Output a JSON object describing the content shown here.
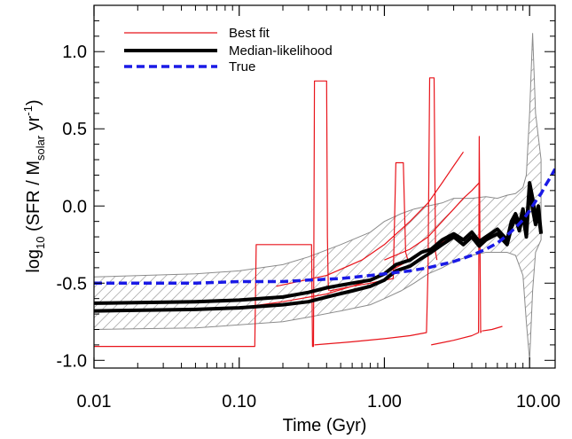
{
  "chart_data": {
    "type": "line",
    "xlabel": "Time (Gyr)",
    "ylabel": {
      "prefix": "log",
      "prefix_sub": "10",
      "main": " (SFR / M",
      "main_sub": "solar",
      "main_tail": " yr",
      "main_sup": "-1",
      "close": ")"
    },
    "x_scale": "log",
    "xlim": [
      0.01,
      15
    ],
    "ylim": [
      -1.05,
      1.3
    ],
    "x_ticks": [
      {
        "value": 0.01,
        "label": "0.01"
      },
      {
        "value": 0.1,
        "label": "0.10"
      },
      {
        "value": 1,
        "label": "1.00"
      },
      {
        "value": 10,
        "label": "10.00"
      }
    ],
    "y_ticks": [
      {
        "value": 1.0,
        "label": "1.0"
      },
      {
        "value": 0.5,
        "label": "0.5"
      },
      {
        "value": 0.0,
        "label": "0.0"
      },
      {
        "value": -0.5,
        "label": "-0.5"
      },
      {
        "value": -1.0,
        "label": "-1.0"
      }
    ],
    "legend": {
      "placement": "top-left",
      "entries": [
        {
          "name": "Best fit",
          "color": "#e8141b",
          "style": "thin"
        },
        {
          "name": "Median-likelihood",
          "color": "#000000",
          "style": "thick"
        },
        {
          "name": "True",
          "color": "#1a1ae6",
          "style": "dashed"
        }
      ]
    },
    "band": {
      "color": "#8c8c8c",
      "fill": "hatched",
      "x": [
        0.01,
        0.05,
        0.1,
        0.2,
        0.3,
        0.5,
        0.8,
        1.0,
        1.3,
        1.6,
        2.0,
        2.5,
        3.0,
        4.0,
        5.0,
        6.0,
        7.0,
        8.0,
        9.0,
        9.5,
        10.0,
        10.5,
        11.0,
        12.0
      ],
      "upper": [
        -0.46,
        -0.44,
        -0.42,
        -0.38,
        -0.33,
        -0.25,
        -0.17,
        -0.1,
        -0.05,
        -0.02,
        0.0,
        0.02,
        0.05,
        0.05,
        0.06,
        0.05,
        0.07,
        0.08,
        0.12,
        0.2,
        0.6,
        1.12,
        0.6,
        0.3
      ],
      "lower": [
        -0.8,
        -0.79,
        -0.77,
        -0.75,
        -0.72,
        -0.68,
        -0.64,
        -0.6,
        -0.55,
        -0.5,
        -0.44,
        -0.4,
        -0.36,
        -0.32,
        -0.3,
        -0.3,
        -0.3,
        -0.32,
        -0.45,
        -0.75,
        -1.0,
        -0.55,
        -0.3,
        -0.22
      ]
    },
    "series": [
      {
        "name": "Best fit",
        "color": "#e8141b",
        "segments": [
          {
            "x": [
              0.01,
              0.128,
              0.131,
              0.315,
              0.32,
              0.325,
              0.33,
              0.4,
              0.405,
              0.41,
              0.415
            ],
            "y": [
              -0.91,
              -0.91,
              -0.25,
              -0.25,
              -0.91,
              -0.91,
              0.81,
              0.81,
              -0.2,
              -0.5,
              -0.55
            ]
          },
          {
            "x": [
              0.33,
              0.6,
              1.0,
              1.5,
              1.95,
              2.0,
              2.05,
              2.2,
              2.25,
              2.3
            ],
            "y": [
              -0.9,
              -0.88,
              -0.86,
              -0.84,
              -0.82,
              -0.4,
              0.83,
              0.83,
              -0.3,
              -0.35
            ]
          },
          {
            "x": [
              2.1,
              3.0,
              4.0,
              4.45,
              4.5,
              4.55,
              4.6,
              4.65
            ],
            "y": [
              -0.9,
              -0.87,
              -0.84,
              -0.82,
              0.45,
              -0.2,
              -0.82,
              -0.81
            ]
          },
          {
            "x": [
              4.7,
              5.5,
              6.5
            ],
            "y": [
              -0.81,
              -0.8,
              -0.78
            ]
          },
          {
            "x": [
              0.42,
              0.6,
              0.8,
              1.0,
              1.15,
              1.2,
              1.25,
              1.35,
              1.4,
              1.45
            ],
            "y": [
              -0.55,
              -0.52,
              -0.5,
              -0.48,
              -0.47,
              0.28,
              0.28,
              0.28,
              -0.3,
              -0.35
            ]
          },
          {
            "x": [
              0.18,
              0.4,
              0.7,
              1.0,
              1.5,
              2.0,
              2.5,
              3.0,
              3.5
            ],
            "y": [
              -0.52,
              -0.45,
              -0.35,
              -0.25,
              -0.1,
              0.02,
              0.15,
              0.26,
              0.35
            ]
          },
          {
            "x": [
              1.0,
              1.5,
              2.0,
              2.5,
              3.0,
              3.5,
              4.0,
              4.5
            ],
            "y": [
              -0.35,
              -0.28,
              -0.2,
              -0.1,
              -0.02,
              0.05,
              0.1,
              0.15
            ]
          },
          {
            "x": [
              0.1,
              0.2,
              0.4,
              0.7,
              1.0,
              1.5,
              2.0,
              3.0
            ],
            "y": [
              -0.66,
              -0.62,
              -0.57,
              -0.5,
              -0.44,
              -0.35,
              -0.28,
              -0.2
            ]
          }
        ]
      },
      {
        "name": "Median-likelihood",
        "color": "#000000",
        "segments": [
          {
            "x": [
              0.01,
              0.05,
              0.1,
              0.2,
              0.3,
              0.4,
              0.6,
              0.8,
              1.0,
              1.2,
              1.5,
              1.8,
              2.1,
              2.5,
              3.0,
              3.5,
              4.0,
              4.5,
              5.0,
              6.0,
              7.0,
              7.5,
              8.0,
              8.5,
              9.0,
              9.5,
              10.0,
              10.5,
              11.0,
              11.5,
              12.0
            ],
            "y": [
              -0.63,
              -0.62,
              -0.61,
              -0.59,
              -0.56,
              -0.53,
              -0.5,
              -0.48,
              -0.44,
              -0.38,
              -0.35,
              -0.3,
              -0.28,
              -0.22,
              -0.18,
              -0.22,
              -0.17,
              -0.23,
              -0.2,
              -0.15,
              -0.22,
              -0.1,
              -0.05,
              -0.12,
              -0.02,
              -0.15,
              0.15,
              0.05,
              -0.08,
              0.0,
              -0.18
            ]
          },
          {
            "x": [
              0.01,
              0.05,
              0.1,
              0.2,
              0.3,
              0.4,
              0.6,
              0.8,
              1.0,
              1.2,
              1.5,
              1.8,
              2.1,
              2.5,
              3.0,
              3.5,
              4.0,
              4.5,
              5.0,
              6.0,
              7.0,
              7.5,
              8.0,
              8.5,
              9.0,
              9.5,
              10.0,
              10.5,
              11.0,
              11.5,
              12.0
            ],
            "y": [
              -0.68,
              -0.67,
              -0.66,
              -0.64,
              -0.62,
              -0.59,
              -0.55,
              -0.52,
              -0.48,
              -0.42,
              -0.39,
              -0.34,
              -0.3,
              -0.25,
              -0.2,
              -0.25,
              -0.2,
              -0.26,
              -0.22,
              -0.18,
              -0.25,
              -0.14,
              -0.08,
              -0.16,
              -0.06,
              -0.2,
              0.12,
              -0.02,
              -0.12,
              -0.05,
              -0.18
            ]
          }
        ]
      },
      {
        "name": "True",
        "color": "#1a1ae6",
        "segments": [
          {
            "x": [
              0.01,
              0.05,
              0.1,
              0.2,
              0.3,
              0.5,
              0.8,
              1.0,
              1.5,
              2.0,
              3.0,
              4.0,
              5.0,
              6.0,
              7.0,
              8.0,
              9.0,
              10.0,
              11.0,
              12.0,
              13.0,
              14.0,
              15.0
            ],
            "y": [
              -0.5,
              -0.5,
              -0.49,
              -0.49,
              -0.48,
              -0.47,
              -0.45,
              -0.44,
              -0.42,
              -0.4,
              -0.36,
              -0.32,
              -0.28,
              -0.24,
              -0.19,
              -0.14,
              -0.09,
              -0.03,
              0.03,
              0.08,
              0.14,
              0.19,
              0.24
            ]
          }
        ]
      }
    ]
  }
}
